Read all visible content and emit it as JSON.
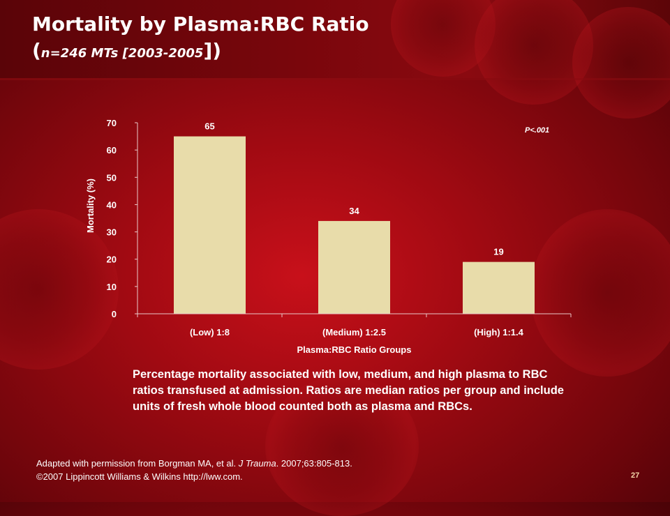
{
  "slide": {
    "title": "Mortality by Plasma:RBC Ratio",
    "subtitle_open": "(",
    "subtitle_inner": "n=246 MTs [2003-2005",
    "subtitle_close": "])",
    "caption": "Percentage mortality associated with low, medium, and high plasma to RBC ratios transfused at admission. Ratios are median ratios per group and include units of fresh whole blood counted both as plasma and RBCs.",
    "credit_prefix": "Adapted with permission from Borgman MA, et al. ",
    "credit_journal": "J Trauma",
    "credit_suffix": ". 2007;63:805-813.",
    "credit_line2": "©2007 Lippincott Williams & Wilkins http://lww.com.",
    "page_number": "27"
  },
  "chart_data": {
    "type": "bar",
    "categories": [
      "(Low) 1:8",
      "(Medium) 1:2.5",
      "(High) 1:1.4"
    ],
    "values": [
      65,
      34,
      19
    ],
    "data_labels": [
      "65",
      "34",
      "19"
    ],
    "xlabel": "Plasma:RBC Ratio Groups",
    "ylabel": "Mortality (%)",
    "ylim": [
      0,
      70
    ],
    "yticks": [
      0,
      10,
      20,
      30,
      40,
      50,
      60,
      70
    ],
    "annotation": "P<.001",
    "bar_color": "#e8dcaa",
    "text_color": "#ffffff",
    "grid": false,
    "legend": "none"
  }
}
